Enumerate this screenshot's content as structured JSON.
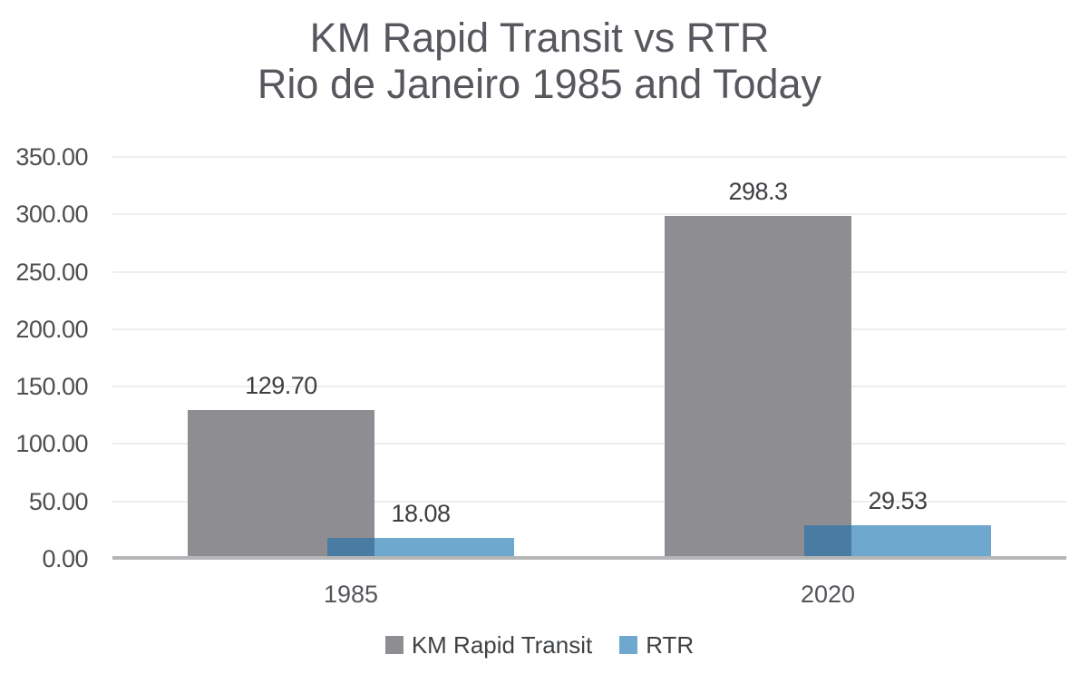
{
  "title": {
    "line1": "KM Rapid Transit vs RTR",
    "line2": "Rio de Janeiro 1985 and Today"
  },
  "chart_data": {
    "type": "bar",
    "title": "KM Rapid Transit vs RTR",
    "subtitle": "Rio de Janeiro 1985 and Today",
    "categories": [
      "1985",
      "2020"
    ],
    "series": [
      {
        "name": "KM Rapid Transit",
        "color": "#8e8e92",
        "values": [
          129.7,
          298.3
        ],
        "value_labels": [
          "129.70",
          "298.3"
        ]
      },
      {
        "name": "RTR",
        "color": "#6fa8cf",
        "overlap_color": "#4a7ca3",
        "values": [
          18.08,
          29.53
        ],
        "value_labels": [
          "18.08",
          "29.53"
        ]
      }
    ],
    "xlabel": "",
    "ylabel": "",
    "ylim": [
      0,
      350
    ],
    "y_tick_step": 50,
    "y_tick_labels": [
      "0.00",
      "50.00",
      "100.00",
      "150.00",
      "200.00",
      "250.00",
      "300.00",
      "350.00"
    ],
    "grid": true,
    "legend_position": "bottom",
    "colors": {
      "background": "#ffffff",
      "title_text": "#56585e",
      "tick_text": "#4e4f53",
      "value_label_text": "#3e3f43",
      "category_text": "#54565c",
      "legend_text": "#3f4245",
      "gridline": "#eeeeee",
      "axis_line": "#b5b6b8"
    }
  }
}
